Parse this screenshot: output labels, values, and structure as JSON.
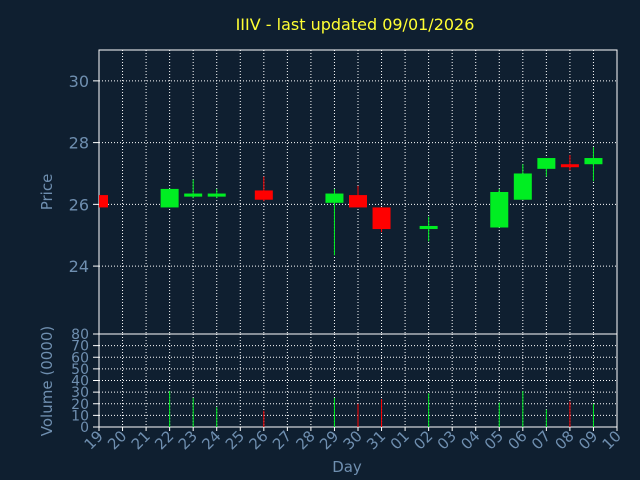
{
  "chart_data": {
    "type": "candlestick",
    "title": "IIIV - last updated 09/01/2026",
    "ylabel": "Price",
    "volume_label": "Volume (0000)",
    "xlabel": "Day",
    "colors": {
      "background": "#0f1f30",
      "grid": "#ffffff",
      "up": "#00ee22",
      "down": "#ff0000",
      "title": "#ffff33",
      "axis_text": "#6f8fb0"
    },
    "x_ticks": [
      "19",
      "20",
      "21",
      "22",
      "23",
      "24",
      "25",
      "26",
      "27",
      "28",
      "29",
      "30",
      "31",
      "01",
      "02",
      "03",
      "04",
      "05",
      "06",
      "07",
      "08",
      "09",
      "10"
    ],
    "price_ylim": [
      21.8,
      31.0
    ],
    "price_ticks": [
      24,
      26,
      28,
      30
    ],
    "volume_ylim": [
      0,
      80
    ],
    "volume_ticks": [
      0,
      10,
      20,
      30,
      40,
      50,
      60,
      70,
      80
    ],
    "candles": [
      {
        "day": "19",
        "open": 26.3,
        "close": 25.9,
        "high": 26.3,
        "low": 25.9,
        "volume": 0
      },
      {
        "day": "22",
        "open": 25.9,
        "close": 26.5,
        "high": 26.5,
        "low": 25.9,
        "volume": 31
      },
      {
        "day": "23",
        "open": 26.25,
        "close": 26.35,
        "high": 26.8,
        "low": 26.2,
        "volume": 25
      },
      {
        "day": "24",
        "open": 26.25,
        "close": 26.35,
        "high": 26.5,
        "low": 26.2,
        "volume": 17
      },
      {
        "day": "26",
        "open": 26.45,
        "close": 26.15,
        "high": 26.9,
        "low": 26.1,
        "volume": 14
      },
      {
        "day": "29",
        "open": 26.05,
        "close": 26.35,
        "high": 26.5,
        "low": 24.35,
        "volume": 25
      },
      {
        "day": "30",
        "open": 26.3,
        "close": 25.9,
        "high": 26.6,
        "low": 25.9,
        "volume": 20
      },
      {
        "day": "31",
        "open": 25.9,
        "close": 25.2,
        "high": 25.9,
        "low": 25.1,
        "volume": 24
      },
      {
        "day": "02",
        "open": 25.2,
        "close": 25.3,
        "high": 25.6,
        "low": 24.8,
        "volume": 29
      },
      {
        "day": "05",
        "open": 25.25,
        "close": 26.4,
        "high": 26.5,
        "low": 25.25,
        "volume": 21
      },
      {
        "day": "06",
        "open": 26.15,
        "close": 27.0,
        "high": 27.3,
        "low": 26.15,
        "volume": 31
      },
      {
        "day": "07",
        "open": 27.15,
        "close": 27.5,
        "high": 27.5,
        "low": 26.9,
        "volume": 15
      },
      {
        "day": "08",
        "open": 27.3,
        "close": 27.25,
        "high": 27.6,
        "low": 27.1,
        "volume": 22
      },
      {
        "day": "09",
        "open": 27.3,
        "close": 27.5,
        "high": 27.85,
        "low": 26.75,
        "volume": 20
      }
    ]
  }
}
